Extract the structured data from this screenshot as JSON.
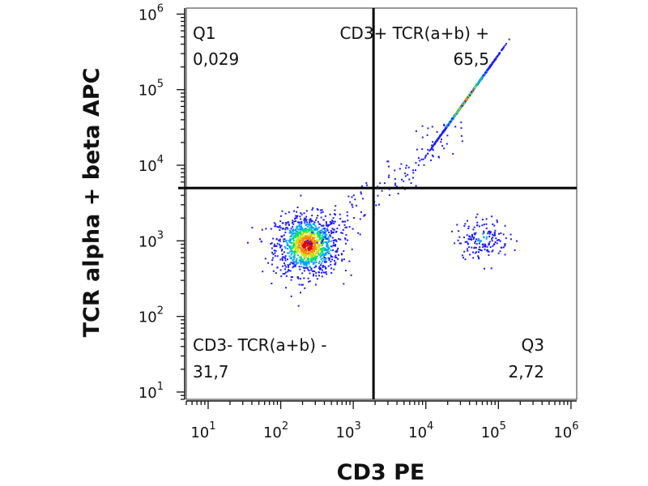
{
  "chart_data": {
    "type": "scatter",
    "subtype": "flow-cytometry-density-dot-plot",
    "xlabel": "CD3 PE",
    "ylabel": "TCR alpha + beta APC",
    "x_scale": "log",
    "y_scale": "log",
    "xlim": [
      5,
      1200000
    ],
    "ylim": [
      8,
      1200000
    ],
    "x_ticks": [
      {
        "base": "10",
        "exp": "1",
        "value": 10
      },
      {
        "base": "10",
        "exp": "2",
        "value": 100
      },
      {
        "base": "10",
        "exp": "3",
        "value": 1000
      },
      {
        "base": "10",
        "exp": "4",
        "value": 10000
      },
      {
        "base": "10",
        "exp": "5",
        "value": 100000
      },
      {
        "base": "10",
        "exp": "6",
        "value": 1000000
      }
    ],
    "y_ticks": [
      {
        "base": "10",
        "exp": "1",
        "value": 10
      },
      {
        "base": "10",
        "exp": "2",
        "value": 100
      },
      {
        "base": "10",
        "exp": "3",
        "value": 1000
      },
      {
        "base": "10",
        "exp": "4",
        "value": 10000
      },
      {
        "base": "10",
        "exp": "5",
        "value": 100000
      },
      {
        "base": "10",
        "exp": "6",
        "value": 1000000
      }
    ],
    "gates": {
      "x_threshold": 1900,
      "y_threshold": 5000
    },
    "quadrants": [
      {
        "id": "q1",
        "name": "Q1",
        "percent": "0,029",
        "position": "top-left"
      },
      {
        "id": "q2",
        "name": "CD3+ TCR(a+b) +",
        "percent": "65,5",
        "position": "top-right"
      },
      {
        "id": "q3",
        "name": "Q3",
        "percent": "2,72",
        "position": "bottom-right"
      },
      {
        "id": "q4",
        "name": "CD3- TCR(a+b) -",
        "percent": "31,7",
        "position": "bottom-left"
      }
    ],
    "populations": [
      {
        "name": "CD3- TCR- cluster",
        "center_x": 230,
        "center_y": 900,
        "spread_log_x": 0.22,
        "spread_log_y": 0.2,
        "count": 1100
      },
      {
        "name": "CD3+ TCR+ cluster",
        "center_x": 35000,
        "center_y": 75000,
        "spread_log_x": 0.12,
        "spread_log_y": 0.14,
        "count": 1300
      },
      {
        "name": "CD3+ TCR- cluster",
        "center_x": 60000,
        "center_y": 1100,
        "spread_log_x": 0.18,
        "spread_log_y": 0.13,
        "count": 170
      }
    ],
    "density_colors": [
      "#1a1aff",
      "#00a0ff",
      "#00e070",
      "#c8e000",
      "#ff8800",
      "#e00000"
    ]
  }
}
